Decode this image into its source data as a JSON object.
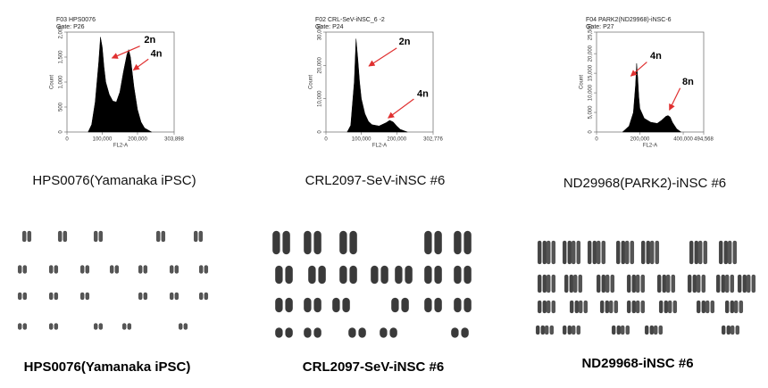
{
  "chart_data": [
    {
      "type": "area",
      "title": "F03 HPS0076",
      "subtitle": "Gate: P26",
      "x_label": "FL2-A",
      "y_label": "Count",
      "x": [
        60000,
        70000,
        80000,
        90000,
        95000,
        100000,
        105000,
        110000,
        120000,
        130000,
        140000,
        150000,
        160000,
        170000,
        175000,
        180000,
        190000,
        200000,
        210000,
        220000,
        240000
      ],
      "values": [
        0,
        150,
        600,
        1400,
        1900,
        1700,
        1300,
        1000,
        750,
        620,
        600,
        800,
        1200,
        1550,
        1650,
        1500,
        900,
        450,
        200,
        80,
        0
      ],
      "color": "#000000",
      "xlim": [
        0,
        303898
      ],
      "xticks": [
        0,
        {
          "value": 100000,
          "label": "100,000"
        },
        {
          "value": 200000,
          "label": "200,000"
        },
        {
          "value": 303898,
          "label": "303,898"
        }
      ],
      "ylim": [
        0,
        2000
      ],
      "yticks": [
        0,
        500,
        {
          "value": 1000,
          "label": "1,000"
        },
        {
          "value": 1500,
          "label": "1,500"
        },
        {
          "value": 2000,
          "label": "2,000"
        }
      ],
      "annotations": [
        "2n",
        "4n"
      ]
    },
    {
      "type": "area",
      "title": "F02 CRL-SeV-iNSC_6 -2",
      "subtitle": "Gate: P24",
      "x_label": "FL2-A",
      "y_label": "Count",
      "x": [
        60000,
        70000,
        80000,
        85000,
        90000,
        95000,
        100000,
        110000,
        120000,
        130000,
        150000,
        170000,
        180000,
        190000,
        200000,
        210000,
        230000
      ],
      "values": [
        0,
        2000,
        15000,
        28000,
        22000,
        15000,
        10000,
        5500,
        3200,
        2200,
        1800,
        2800,
        3500,
        3000,
        1800,
        800,
        0
      ],
      "color": "#000000",
      "xlim": [
        0,
        302776
      ],
      "xticks": [
        0,
        {
          "value": 100000,
          "label": "100,000"
        },
        {
          "value": 200000,
          "label": "200,000"
        },
        {
          "value": 302776,
          "label": "302,776"
        }
      ],
      "ylim": [
        0,
        30000
      ],
      "yticks": [
        0,
        {
          "value": 10000,
          "label": "10,000"
        },
        {
          "value": 20000,
          "label": "20,000"
        },
        {
          "value": 30000,
          "label": "30,000"
        }
      ],
      "annotations": [
        "2n",
        "4n"
      ]
    },
    {
      "type": "area",
      "title": "F04 PARK2(ND29968)-iNSC-6",
      "subtitle": "Gate: P27",
      "x_label": "FL2-A",
      "y_label": "Count",
      "x": [
        120000,
        150000,
        170000,
        180000,
        185000,
        190000,
        195000,
        200000,
        220000,
        250000,
        280000,
        300000,
        320000,
        330000,
        340000,
        350000,
        370000,
        390000
      ],
      "values": [
        0,
        1500,
        5000,
        12000,
        17500,
        14000,
        9000,
        6000,
        3500,
        2500,
        2200,
        3000,
        4000,
        4200,
        3800,
        2500,
        800,
        0
      ],
      "color": "#000000",
      "xlim": [
        0,
        494568
      ],
      "xticks": [
        0,
        {
          "value": 200000,
          "label": "200,000"
        },
        {
          "value": 400000,
          "label": "400,000"
        },
        {
          "value": 494568,
          "label": "494,568"
        }
      ],
      "ylim": [
        0,
        25500
      ],
      "yticks": [
        0,
        {
          "value": 5000,
          "label": "5,000"
        },
        {
          "value": 10000,
          "label": "10,000"
        },
        {
          "value": 15000,
          "label": "15,000"
        },
        {
          "value": 20000,
          "label": "20,000"
        },
        {
          "value": 25500,
          "label": "25,500"
        }
      ],
      "annotations": [
        "4n",
        "8n"
      ]
    }
  ],
  "captions": {
    "flow": [
      "HPS0076(Yamanaka iPSC)",
      "CRL2097-SeV-iNSC #6",
      "ND29968(PARK2)-iNSC #6"
    ],
    "karyotype": [
      "HPS0076(Yamanaka iPSC)",
      "CRL2097-SeV-iNSC #6",
      "ND29968-iNSC #6"
    ]
  }
}
